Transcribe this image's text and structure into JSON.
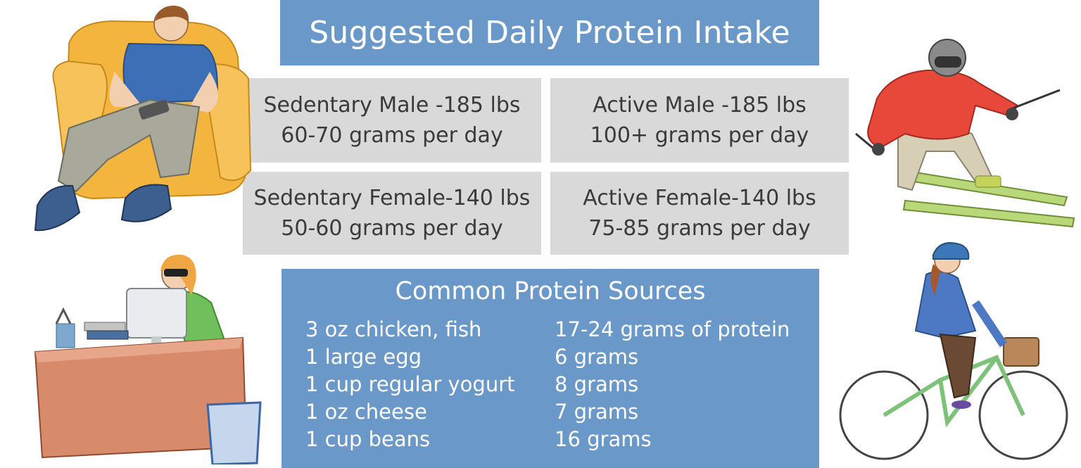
{
  "title": "Suggested Daily Protein Intake",
  "cards": [
    {
      "line1": "Sedentary Male -185 lbs",
      "line2": "60-70 grams per day"
    },
    {
      "line1": "Active Male -185 lbs",
      "line2": "100+ grams per day"
    },
    {
      "line1": "Sedentary Female-140 lbs",
      "line2": "50-60 grams per day"
    },
    {
      "line1": "Active Female-140 lbs",
      "line2": "75-85 grams per day"
    }
  ],
  "sources": {
    "heading": "Common Protein Sources",
    "rows": [
      {
        "item": "3 oz chicken, fish",
        "amount": "17-24 grams of protein"
      },
      {
        "item": "1 large egg",
        "amount": "6 grams"
      },
      {
        "item": "1 cup regular yogurt",
        "amount": "8 grams"
      },
      {
        "item": "1 oz cheese",
        "amount": "7 grams"
      },
      {
        "item": "1 cup beans",
        "amount": "16 grams"
      }
    ]
  },
  "colors": {
    "accent_blue": "#6a98c9",
    "card_gray": "#d9d9d9",
    "card_text": "#3a3a3a"
  },
  "illustrations": [
    "man-in-armchair",
    "skier",
    "woman-at-desk",
    "cyclist"
  ]
}
